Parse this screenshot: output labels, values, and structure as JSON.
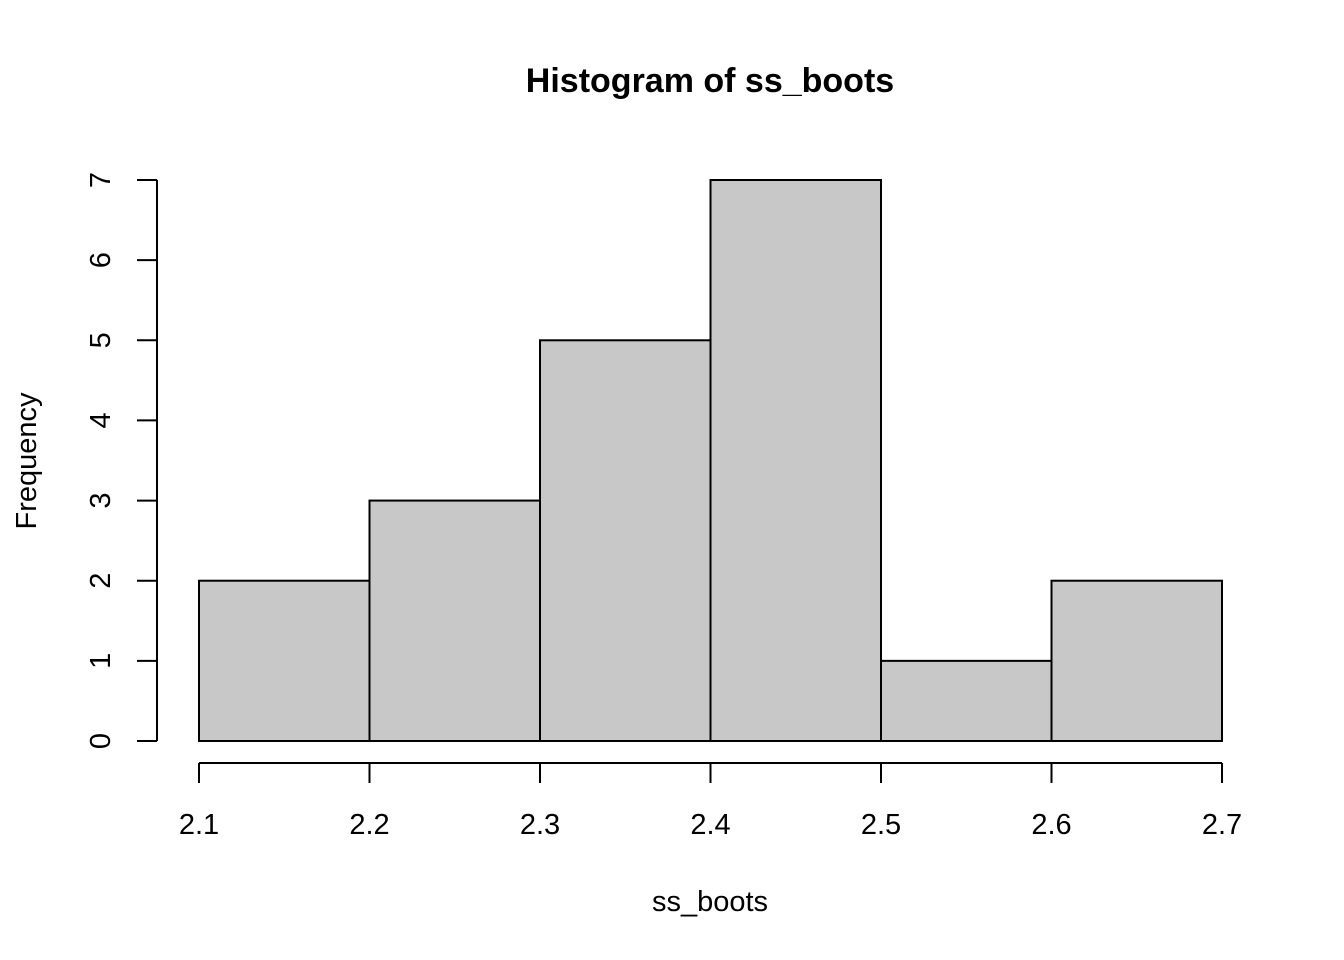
{
  "chart_data": {
    "type": "bar",
    "title": "Histogram of ss_boots",
    "xlabel": "ss_boots",
    "ylabel": "Frequency",
    "bins": [
      {
        "start": 2.1,
        "end": 2.2,
        "count": 2
      },
      {
        "start": 2.2,
        "end": 2.3,
        "count": 3
      },
      {
        "start": 2.3,
        "end": 2.4,
        "count": 5
      },
      {
        "start": 2.4,
        "end": 2.5,
        "count": 7
      },
      {
        "start": 2.5,
        "end": 2.6,
        "count": 1
      },
      {
        "start": 2.6,
        "end": 2.7,
        "count": 2
      }
    ],
    "xlim": [
      2.1,
      2.7
    ],
    "ylim": [
      0,
      7
    ],
    "x_ticks": [
      "2.1",
      "2.2",
      "2.3",
      "2.4",
      "2.5",
      "2.6",
      "2.7"
    ],
    "y_ticks": [
      "0",
      "1",
      "2",
      "3",
      "4",
      "5",
      "6",
      "7"
    ],
    "bar_color": "#c8c8c8",
    "grid": false,
    "legend": "none"
  }
}
